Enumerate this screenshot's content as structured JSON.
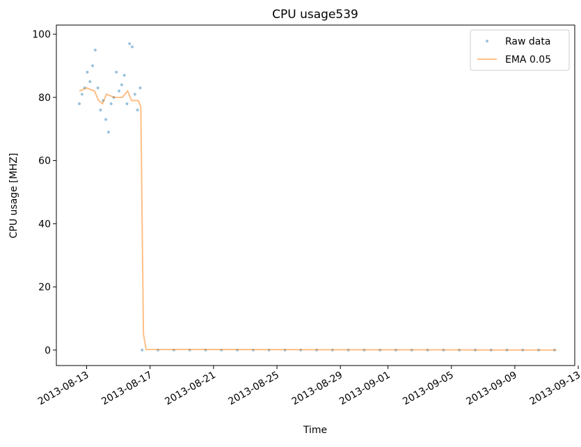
{
  "chart_data": {
    "type": "scatter-line",
    "title": "CPU usage539",
    "x_label": "Time",
    "y_label": "CPU usage [MHZ]",
    "xlim": [
      "2013-08-11T02:10",
      "2013-09-12T18:40"
    ],
    "xticks": [
      "2013-08-13",
      "2013-08-17",
      "2013-08-21",
      "2013-08-25",
      "2013-08-29",
      "2013-09-01",
      "2013-09-05",
      "2013-09-09",
      "2013-09-13"
    ],
    "ylim": [
      -4.9,
      102.9
    ],
    "yticks": [
      0,
      20,
      40,
      60,
      80,
      100
    ],
    "legend": "upper right",
    "series": [
      {
        "name": "Raw data",
        "kind": "markers",
        "color": "#1f77b4",
        "x": [
          "2013-08-12T13:00",
          "2013-08-12T17:00",
          "2013-08-12T21:00",
          "2013-08-13T01:00",
          "2013-08-13T05:00",
          "2013-08-13T09:00",
          "2013-08-13T13:00",
          "2013-08-13T17:00",
          "2013-08-13T21:00",
          "2013-08-14T01:00",
          "2013-08-14T05:00",
          "2013-08-14T09:00",
          "2013-08-14T13:00",
          "2013-08-14T17:00",
          "2013-08-14T21:00",
          "2013-08-15T01:00",
          "2013-08-15T05:00",
          "2013-08-15T09:00",
          "2013-08-15T13:00",
          "2013-08-15T17:00",
          "2013-08-15T21:00",
          "2013-08-16T01:00",
          "2013-08-16T05:00",
          "2013-08-16T09:00",
          "2013-08-16T12:00",
          "2013-08-17T12:00",
          "2013-08-18T12:00",
          "2013-08-19T12:00",
          "2013-08-20T12:00",
          "2013-08-21T12:00",
          "2013-08-22T12:00",
          "2013-08-23T12:00",
          "2013-08-24T12:00",
          "2013-08-25T12:00",
          "2013-08-26T12:00",
          "2013-08-27T12:00",
          "2013-08-28T12:00",
          "2013-08-29T12:00",
          "2013-08-30T12:00",
          "2013-08-31T12:00",
          "2013-09-01T12:00",
          "2013-09-02T12:00",
          "2013-09-03T12:00",
          "2013-09-04T12:00",
          "2013-09-05T12:00",
          "2013-09-06T12:00",
          "2013-09-07T12:00",
          "2013-09-08T12:00",
          "2013-09-09T12:00",
          "2013-09-10T12:00",
          "2013-09-11T12:00"
        ],
        "values": [
          78,
          81,
          83,
          88,
          85,
          90,
          95,
          83,
          76,
          79,
          73,
          69,
          78,
          80,
          88,
          82,
          84,
          87,
          78,
          97,
          96,
          81,
          76,
          83,
          0,
          0,
          0,
          0,
          0,
          0,
          0,
          0,
          0,
          0,
          0,
          0,
          0,
          0,
          0,
          0,
          0,
          0,
          0,
          0,
          0,
          0,
          0,
          0,
          0,
          0,
          0
        ]
      },
      {
        "name": "EMA 0.05",
        "kind": "line",
        "color": "#ff7f0e",
        "x": [
          "2013-08-12T13:00",
          "2013-08-13T00:00",
          "2013-08-13T12:00",
          "2013-08-13T18:00",
          "2013-08-14T00:00",
          "2013-08-14T06:00",
          "2013-08-14T18:00",
          "2013-08-15T06:00",
          "2013-08-15T14:00",
          "2013-08-15T20:00",
          "2013-08-16T06:00",
          "2013-08-16T10:00",
          "2013-08-16T12:00",
          "2013-08-16T14:00",
          "2013-08-16T18:00",
          "2013-09-11T15:00"
        ],
        "values": [
          82,
          83,
          82,
          79,
          78,
          81,
          80,
          80,
          82,
          79,
          79,
          77,
          40,
          5,
          0.2,
          0
        ]
      }
    ]
  }
}
